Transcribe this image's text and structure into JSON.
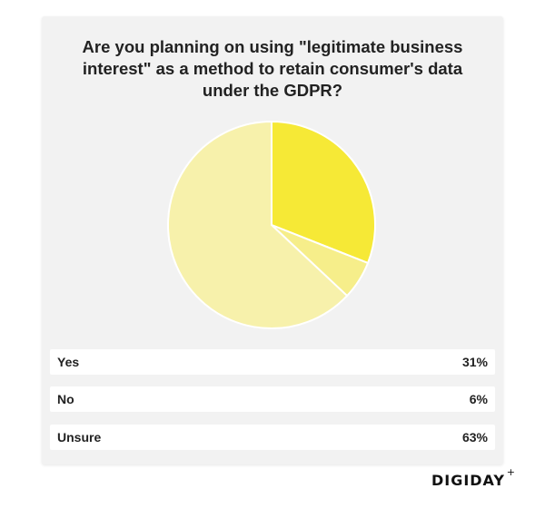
{
  "title": "Are you planning on using \"legitimate business interest\" as a method to retain consumer's data under the GDPR?",
  "chart_data": {
    "type": "pie",
    "title": "Are you planning on using \"legitimate business interest\" as a method to retain consumer's data under the GDPR?",
    "categories": [
      "Yes",
      "No",
      "Unsure"
    ],
    "values": [
      31,
      6,
      63
    ],
    "labels": [
      "31%",
      "6%",
      "63%"
    ],
    "colors": [
      "#f6e936",
      "#f6ee8a",
      "#f7f1ab"
    ],
    "stroke_color": "#ffffff"
  },
  "legend": [
    {
      "label": "Yes",
      "value": "31%"
    },
    {
      "label": "No",
      "value": "6%"
    },
    {
      "label": "Unsure",
      "value": "63%"
    }
  ],
  "brand": {
    "logo_text": "DIGIDAY",
    "logo_plus": "+"
  }
}
